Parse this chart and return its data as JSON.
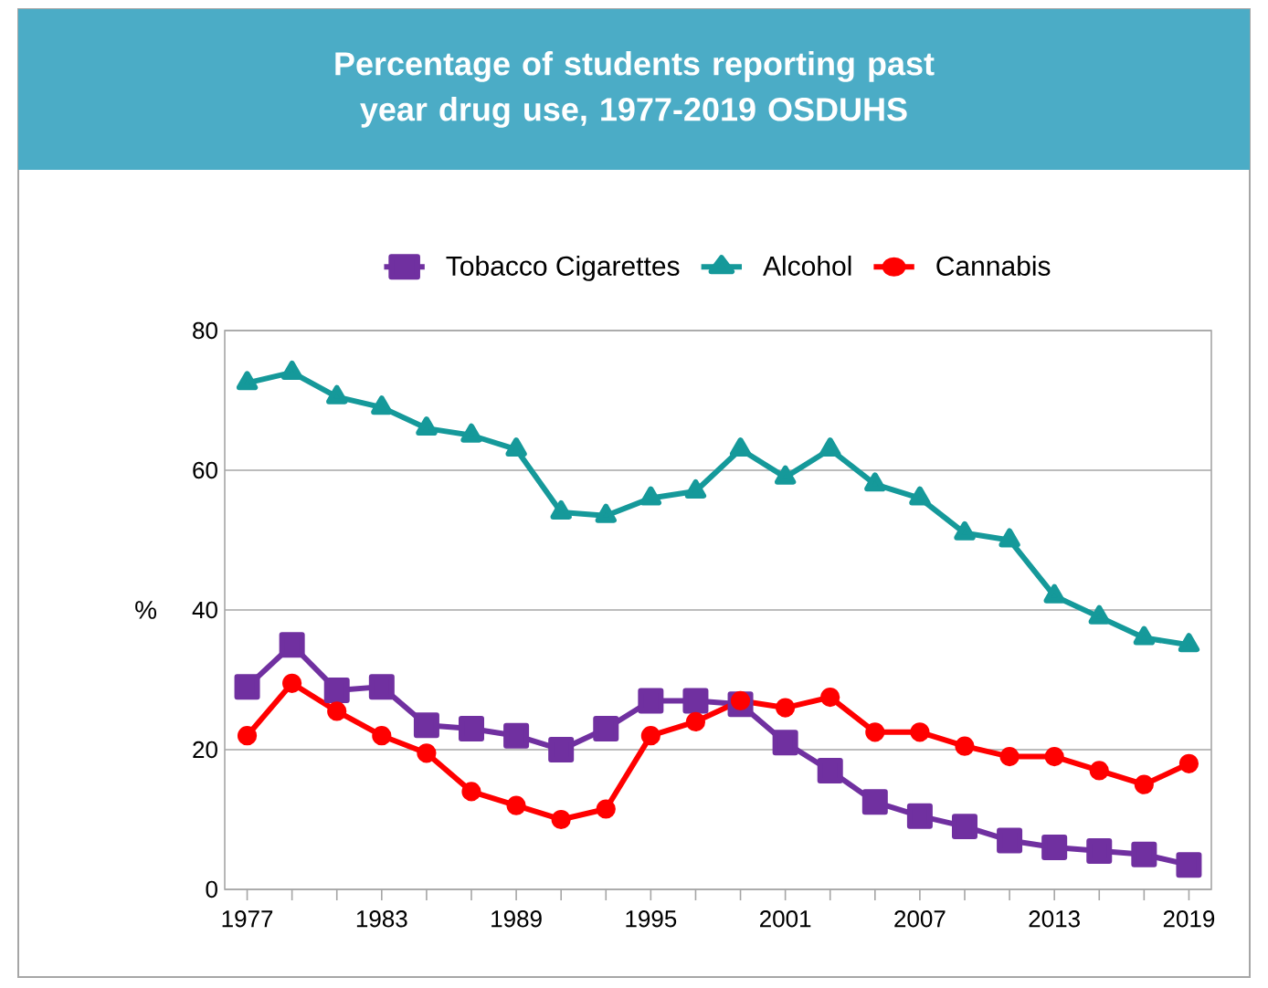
{
  "chart_data": {
    "type": "line",
    "title": "Percentage of students reporting past year drug use, 1977-2019 OSDUHS",
    "ylabel": "%",
    "x": [
      1977,
      1979,
      1981,
      1983,
      1985,
      1987,
      1989,
      1991,
      1993,
      1995,
      1997,
      1999,
      2001,
      2003,
      2005,
      2007,
      2009,
      2011,
      2013,
      2015,
      2017,
      2019
    ],
    "xlim": [
      1976,
      2020
    ],
    "xticks": [
      1977,
      {
        "value": 1979,
        "label": null
      },
      {
        "value": 1981,
        "label": null
      },
      1983,
      {
        "value": 1985,
        "label": null
      },
      {
        "value": 1987,
        "label": null
      },
      1989,
      {
        "value": 1991,
        "label": null
      },
      {
        "value": 1993,
        "label": null
      },
      1995,
      {
        "value": 1997,
        "label": null
      },
      {
        "value": 1999,
        "label": null
      },
      2001,
      {
        "value": 2003,
        "label": null
      },
      {
        "value": 2005,
        "label": null
      },
      2007,
      {
        "value": 2009,
        "label": null
      },
      {
        "value": 2011,
        "label": null
      },
      2013,
      {
        "value": 2015,
        "label": null
      },
      {
        "value": 2017,
        "label": null
      },
      2019
    ],
    "ylim": [
      0,
      80
    ],
    "yticks": [
      0,
      20,
      40,
      60,
      80
    ],
    "grid": "y",
    "legend": "top",
    "line_style": "solid",
    "series": [
      {
        "name": "Tobacco Cigarettes",
        "color": "#7030a0",
        "marker": "square",
        "values": [
          29,
          35,
          28.5,
          29,
          23.5,
          23,
          22,
          20,
          23,
          27,
          27,
          26.5,
          21,
          17,
          12.5,
          10.5,
          9,
          7,
          6,
          5.5,
          5,
          3.5
        ]
      },
      {
        "name": "Alcohol",
        "color": "#15999a",
        "marker": "triangle",
        "values": [
          72.5,
          74,
          70.5,
          69,
          66,
          65,
          63,
          54,
          53.5,
          56,
          57,
          63,
          59,
          63,
          58,
          56,
          51,
          50,
          42,
          39,
          36,
          35
        ]
      },
      {
        "name": "Cannabis",
        "color": "#ff0000",
        "marker": "circle",
        "values": [
          22,
          29.5,
          25.5,
          22,
          19.5,
          14,
          12,
          10,
          11.5,
          22,
          24,
          27,
          26,
          27.5,
          22.5,
          22.5,
          20.5,
          19,
          19,
          17,
          15,
          18
        ]
      }
    ]
  }
}
